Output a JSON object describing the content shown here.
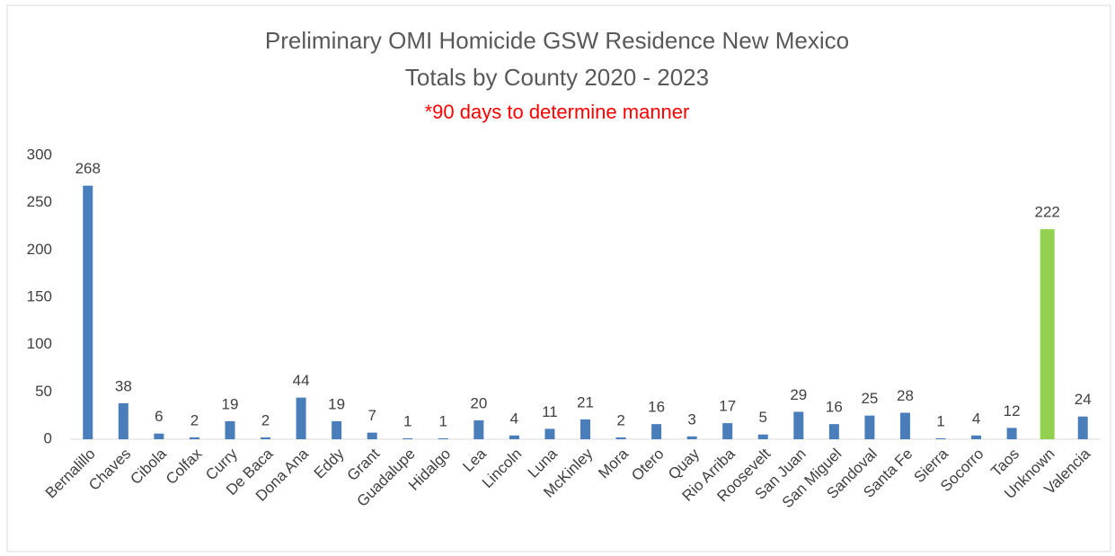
{
  "chart_data": {
    "type": "bar",
    "title": [
      "Preliminary OMI Homicide GSW Residence New Mexico",
      "Totals by County 2020 - 2023"
    ],
    "subtitle": "*90 days to determine manner",
    "categories": [
      "Bernalillo",
      "Chaves",
      "Cibola",
      "Colfax",
      "Curry",
      "De Baca",
      "Dona Ana",
      "Eddy",
      "Grant",
      "Guadalupe",
      "Hidalgo",
      "Lea",
      "Lincoln",
      "Luna",
      "McKinley",
      "Mora",
      "Otero",
      "Quay",
      "Rio Arriba",
      "Roosevelt",
      "San Juan",
      "San Miguel",
      "Sandoval",
      "Santa Fe",
      "Sierra",
      "Socorro",
      "Taos",
      "Unknown",
      "Valencia"
    ],
    "values": [
      268,
      38,
      6,
      2,
      19,
      2,
      44,
      19,
      7,
      1,
      1,
      20,
      4,
      11,
      21,
      2,
      16,
      3,
      17,
      5,
      29,
      16,
      25,
      28,
      1,
      4,
      12,
      222,
      24
    ],
    "colors": [
      "#4a7ebb",
      "#4a7ebb",
      "#4a7ebb",
      "#4a7ebb",
      "#4a7ebb",
      "#4a7ebb",
      "#4a7ebb",
      "#4a7ebb",
      "#4a7ebb",
      "#4a7ebb",
      "#4a7ebb",
      "#4a7ebb",
      "#4a7ebb",
      "#4a7ebb",
      "#4a7ebb",
      "#4a7ebb",
      "#4a7ebb",
      "#4a7ebb",
      "#4a7ebb",
      "#4a7ebb",
      "#4a7ebb",
      "#4a7ebb",
      "#4a7ebb",
      "#4a7ebb",
      "#4a7ebb",
      "#4a7ebb",
      "#4a7ebb",
      "#92d050",
      "#4a7ebb"
    ],
    "ylim": [
      0,
      300
    ],
    "yticks": [
      0,
      50,
      100,
      150,
      200,
      250,
      300
    ],
    "grid": false
  }
}
